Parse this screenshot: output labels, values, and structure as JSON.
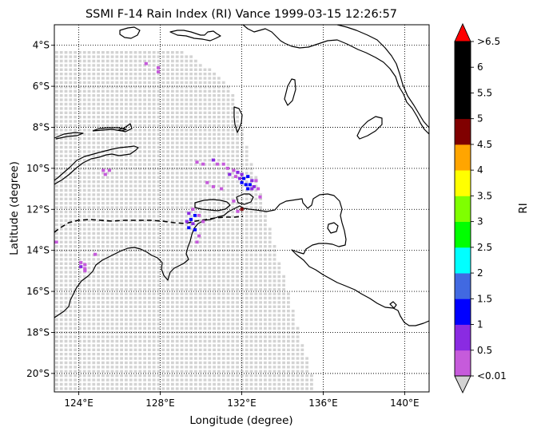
{
  "title": "SSMI F-14 Rain Index (RI) Vance 1999-03-15 12:26:57",
  "map": {
    "xlabel": "Longitude (degree)",
    "ylabel": "Latitude (degree)",
    "lon_range": [
      122.8,
      141.2
    ],
    "lat_range": [
      -20.9,
      -3.0
    ],
    "lon_ticks": [
      {
        "value": 124,
        "label": "124°E"
      },
      {
        "value": 128,
        "label": "128°E"
      },
      {
        "value": 132,
        "label": "132°E"
      },
      {
        "value": 136,
        "label": "136°E"
      },
      {
        "value": 140,
        "label": "140°E"
      }
    ],
    "lat_ticks": [
      {
        "value": -4,
        "label": "4°S"
      },
      {
        "value": -6,
        "label": "6°S"
      },
      {
        "value": -8,
        "label": "8°S"
      },
      {
        "value": -10,
        "label": "10°S"
      },
      {
        "value": -12,
        "label": "12°S"
      },
      {
        "value": -14,
        "label": "14°S"
      },
      {
        "value": -16,
        "label": "16°S"
      },
      {
        "value": -18,
        "label": "18°S"
      },
      {
        "value": -20,
        "label": "20°S"
      }
    ],
    "grid": "dotted",
    "swath_color": "#d3d3d3",
    "coast_color": "#000000",
    "track_style": "dashed"
  },
  "colorbar": {
    "label": "RI",
    "levels": [
      {
        "color": "#c65bdb"
      },
      {
        "color": "#8a2be2"
      },
      {
        "color": "#0000ff"
      },
      {
        "color": "#4169e1"
      },
      {
        "color": "#00ffff"
      },
      {
        "color": "#00ff00"
      },
      {
        "color": "#7fff00"
      },
      {
        "color": "#ffff00"
      },
      {
        "color": "#ffa500"
      },
      {
        "color": "#800000"
      },
      {
        "color": "#000000"
      },
      {
        "color": "#000000"
      },
      {
        "color": "#000000"
      }
    ],
    "under_color": "#d3d3d3",
    "over_color": "#ff0000",
    "tick_labels": [
      "<0.01",
      "0.5",
      "1",
      "1.5",
      "2",
      "2.5",
      "3",
      "3.5",
      "4",
      "4.5",
      "5",
      "5.5",
      "6",
      ">6.5"
    ]
  },
  "rain_pixels": [
    {
      "lon": 127.3,
      "lat": -4.9,
      "level": 0
    },
    {
      "lon": 127.9,
      "lat": -5.1,
      "level": 0
    },
    {
      "lon": 127.9,
      "lat": -5.3,
      "level": 0
    },
    {
      "lon": 124.1,
      "lat": -14.6,
      "level": 0
    },
    {
      "lon": 124.3,
      "lat": -14.7,
      "level": 0
    },
    {
      "lon": 124.1,
      "lat": -14.8,
      "level": 1
    },
    {
      "lon": 124.3,
      "lat": -14.9,
      "level": 0
    },
    {
      "lon": 124.3,
      "lat": -15.0,
      "level": 0
    },
    {
      "lon": 124.8,
      "lat": -14.2,
      "level": 0
    },
    {
      "lon": 122.9,
      "lat": -13.6,
      "level": 0
    },
    {
      "lon": 125.2,
      "lat": -10.1,
      "level": 0
    },
    {
      "lon": 125.5,
      "lat": -10.1,
      "level": 0
    },
    {
      "lon": 125.3,
      "lat": -10.3,
      "level": 0
    },
    {
      "lon": 129.8,
      "lat": -9.7,
      "level": 0
    },
    {
      "lon": 130.1,
      "lat": -9.8,
      "level": 0
    },
    {
      "lon": 130.6,
      "lat": -9.6,
      "level": 1
    },
    {
      "lon": 130.8,
      "lat": -9.8,
      "level": 0
    },
    {
      "lon": 131.1,
      "lat": -9.8,
      "level": 0
    },
    {
      "lon": 131.3,
      "lat": -10.0,
      "level": 0
    },
    {
      "lon": 131.6,
      "lat": -10.1,
      "level": 0
    },
    {
      "lon": 131.8,
      "lat": -10.2,
      "level": 1
    },
    {
      "lon": 132.0,
      "lat": -10.3,
      "level": 1
    },
    {
      "lon": 131.4,
      "lat": -10.3,
      "level": 1
    },
    {
      "lon": 131.7,
      "lat": -10.4,
      "level": 0
    },
    {
      "lon": 131.9,
      "lat": -10.5,
      "level": 1
    },
    {
      "lon": 132.1,
      "lat": -10.5,
      "level": 2
    },
    {
      "lon": 132.3,
      "lat": -10.4,
      "level": 2
    },
    {
      "lon": 132.5,
      "lat": -10.6,
      "level": 1
    },
    {
      "lon": 132.7,
      "lat": -10.6,
      "level": 0
    },
    {
      "lon": 132.0,
      "lat": -10.7,
      "level": 2
    },
    {
      "lon": 132.2,
      "lat": -10.8,
      "level": 2
    },
    {
      "lon": 132.4,
      "lat": -10.8,
      "level": 2
    },
    {
      "lon": 132.6,
      "lat": -10.9,
      "level": 1
    },
    {
      "lon": 132.3,
      "lat": -11.0,
      "level": 2
    },
    {
      "lon": 132.5,
      "lat": -11.0,
      "level": 1
    },
    {
      "lon": 132.8,
      "lat": -11.0,
      "level": 0
    },
    {
      "lon": 130.3,
      "lat": -10.7,
      "level": 0
    },
    {
      "lon": 130.6,
      "lat": -10.9,
      "level": 0
    },
    {
      "lon": 131.0,
      "lat": -11.0,
      "level": 0
    },
    {
      "lon": 132.9,
      "lat": -11.4,
      "level": 0
    },
    {
      "lon": 131.6,
      "lat": -11.6,
      "level": 0
    },
    {
      "lon": 129.6,
      "lat": -12.0,
      "level": 0
    },
    {
      "lon": 129.4,
      "lat": -12.2,
      "level": 1
    },
    {
      "lon": 129.7,
      "lat": -12.3,
      "level": 2
    },
    {
      "lon": 129.5,
      "lat": -12.5,
      "level": 2
    },
    {
      "lon": 129.3,
      "lat": -12.6,
      "level": 1
    },
    {
      "lon": 129.6,
      "lat": -12.7,
      "level": 1
    },
    {
      "lon": 129.4,
      "lat": -12.9,
      "level": 2
    },
    {
      "lon": 129.7,
      "lat": -13.0,
      "level": 2
    },
    {
      "lon": 129.9,
      "lat": -12.3,
      "level": 0
    },
    {
      "lon": 130.1,
      "lat": -12.6,
      "level": 0
    },
    {
      "lon": 129.9,
      "lat": -13.3,
      "level": 0
    },
    {
      "lon": 129.8,
      "lat": -13.6,
      "level": 0
    },
    {
      "lon": 132.0,
      "lat": -12.0,
      "level": 9
    },
    {
      "lon": 131.8,
      "lat": -12.1,
      "level": 0
    }
  ]
}
